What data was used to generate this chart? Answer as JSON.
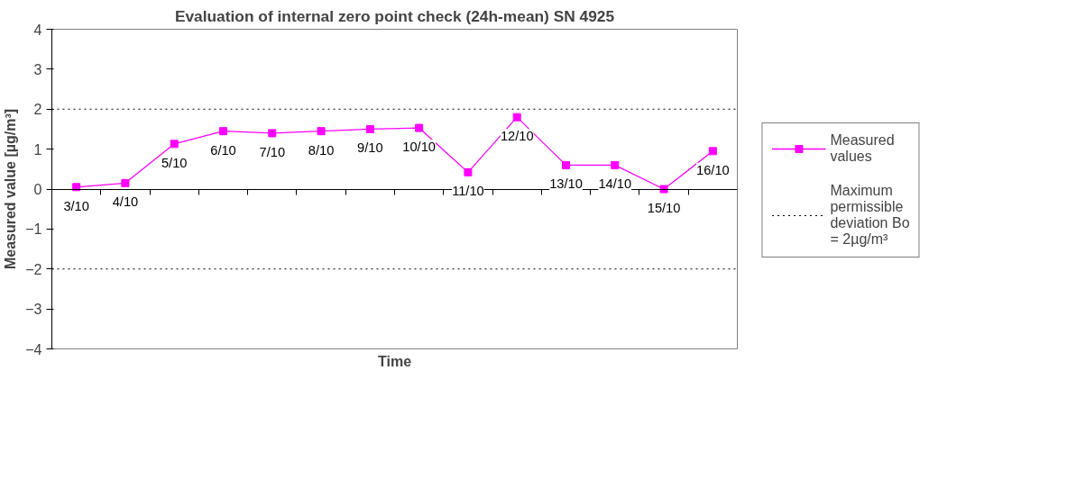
{
  "chart_data": {
    "type": "line",
    "title": "Evaluation of internal zero point check (24h-mean) SN 4925",
    "xlabel": "Time",
    "ylabel": "Measured value [µg/m³]",
    "categories": [
      "3/10",
      "4/10",
      "5/10",
      "6/10",
      "7/10",
      "8/10",
      "9/10",
      "10/10",
      "11/10",
      "12/10",
      "13/10",
      "14/10",
      "15/10",
      "16/10"
    ],
    "series": [
      {
        "name": "Measured values",
        "color": "#ff00ff",
        "values": [
          0.05,
          0.15,
          1.13,
          1.45,
          1.4,
          1.45,
          1.5,
          1.53,
          0.42,
          1.8,
          0.6,
          0.6,
          0.0,
          0.95
        ]
      }
    ],
    "ref_lines": [
      {
        "axis": "y",
        "value": 2,
        "label": "Maximum permissible deviation Bo = 2µg/m³",
        "color": "#000000",
        "line_style": "dotted"
      },
      {
        "axis": "y",
        "value": -2,
        "label": null,
        "color": "#000000",
        "line_style": "dotted"
      }
    ],
    "ylim": [
      -4,
      4
    ],
    "yticks": [
      -4,
      -3,
      -2,
      -1,
      0,
      1,
      2,
      3,
      4
    ],
    "marker": "square",
    "legend": "right",
    "grid": false,
    "tick_labels": "y"
  }
}
